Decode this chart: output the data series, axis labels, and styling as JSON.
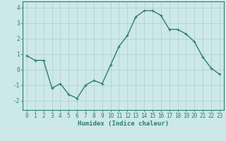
{
  "x": [
    0,
    1,
    2,
    3,
    4,
    5,
    6,
    7,
    8,
    9,
    10,
    11,
    12,
    13,
    14,
    15,
    16,
    17,
    18,
    19,
    20,
    21,
    22,
    23
  ],
  "y": [
    0.9,
    0.6,
    0.6,
    -1.2,
    -0.9,
    -1.6,
    -1.85,
    -1.0,
    -0.7,
    -0.9,
    0.3,
    1.5,
    2.2,
    3.4,
    3.8,
    3.8,
    3.5,
    2.6,
    2.6,
    2.3,
    1.8,
    0.8,
    0.1,
    -0.3
  ],
  "line_color": "#2e7d6e",
  "marker": "+",
  "marker_size": 3,
  "bg_color": "#cce8e8",
  "grid_color": "#b0cccc",
  "xlabel": "Humidex (Indice chaleur)",
  "ylim": [
    -2.6,
    4.4
  ],
  "xlim": [
    -0.5,
    23.5
  ],
  "yticks": [
    -2,
    -1,
    0,
    1,
    2,
    3,
    4
  ],
  "xticks": [
    0,
    1,
    2,
    3,
    4,
    5,
    6,
    7,
    8,
    9,
    10,
    11,
    12,
    13,
    14,
    15,
    16,
    17,
    18,
    19,
    20,
    21,
    22,
    23
  ],
  "xlabel_fontsize": 6.5,
  "tick_fontsize": 5.5,
  "line_width": 1.0,
  "tick_color": "#2e7d6e",
  "spine_color": "#2e7d6e"
}
